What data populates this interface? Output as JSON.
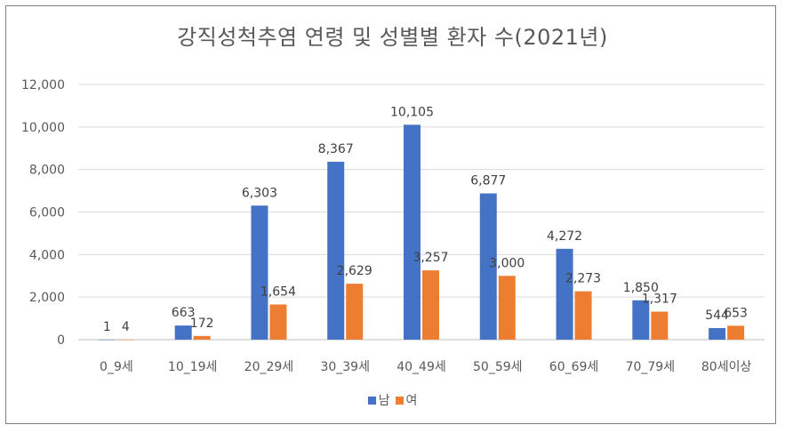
{
  "chart_data": {
    "type": "bar",
    "title": "강직성척추염 연령 및 성별별 환자 수(2021년)",
    "categories": [
      "0_9세",
      "10_19세",
      "20_29세",
      "30_39세",
      "40_49세",
      "50_59세",
      "60_69세",
      "70_79세",
      "80세이상"
    ],
    "series": [
      {
        "name": "남",
        "color": "#4472c4",
        "values": [
          1,
          663,
          6303,
          8367,
          10105,
          6877,
          4272,
          1850,
          544
        ],
        "labels": [
          "1",
          "663",
          "6,303",
          "8,367",
          "10,105",
          "6,877",
          "4,272",
          "1,850",
          "544"
        ]
      },
      {
        "name": "여",
        "color": "#ed7d31",
        "values": [
          4,
          172,
          1654,
          2629,
          3257,
          3000,
          2273,
          1317,
          653
        ],
        "labels": [
          "4",
          "172",
          "1,654",
          "2,629",
          "3,257",
          "3,000",
          "2,273",
          "1,317",
          "653"
        ]
      }
    ],
    "yticks": [
      "0",
      "2,000",
      "4,000",
      "6,000",
      "8,000",
      "10,000",
      "12,000"
    ],
    "ylim": [
      0,
      12000
    ],
    "grid": true,
    "legend_position": "bottom"
  }
}
